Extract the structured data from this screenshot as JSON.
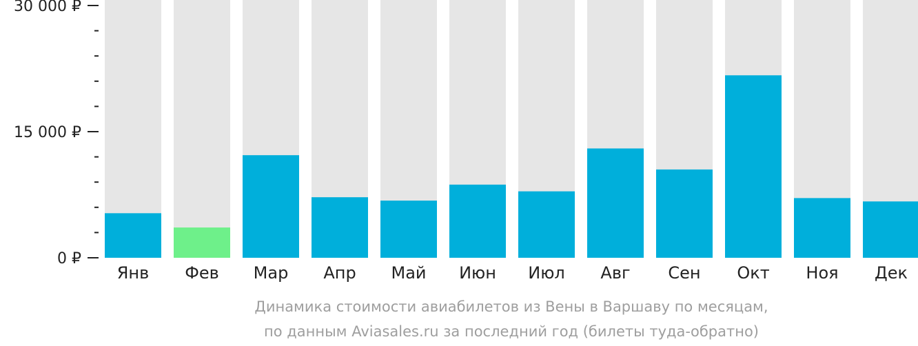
{
  "chart_data": {
    "type": "bar",
    "categories": [
      "Янв",
      "Фев",
      "Мар",
      "Апр",
      "Май",
      "Июн",
      "Июл",
      "Авг",
      "Сен",
      "Окт",
      "Ноя",
      "Дек"
    ],
    "values": [
      5300,
      3600,
      12200,
      7200,
      6800,
      8700,
      7900,
      13000,
      10500,
      21700,
      7100,
      6700
    ],
    "highlight_index": 1,
    "ylim": [
      0,
      30000
    ],
    "yticks": [
      {
        "value": 0,
        "label": "0 ₽"
      },
      {
        "value": 15000,
        "label": "15 000 ₽"
      },
      {
        "value": 30000,
        "label": "30 000 ₽"
      }
    ],
    "minor_tick_step": 3000,
    "caption": [
      "Динамика стоимости авиабилетов из Вены в Варшаву по месяцам,",
      "по данным Aviasales.ru за последний год (билеты туда-обратно)"
    ],
    "colors": {
      "bar": "#00afdb",
      "highlight": "#6ef08a",
      "background_bar": "#e6e6e6",
      "axis": "#222222",
      "caption": "#9e9e9e"
    }
  }
}
